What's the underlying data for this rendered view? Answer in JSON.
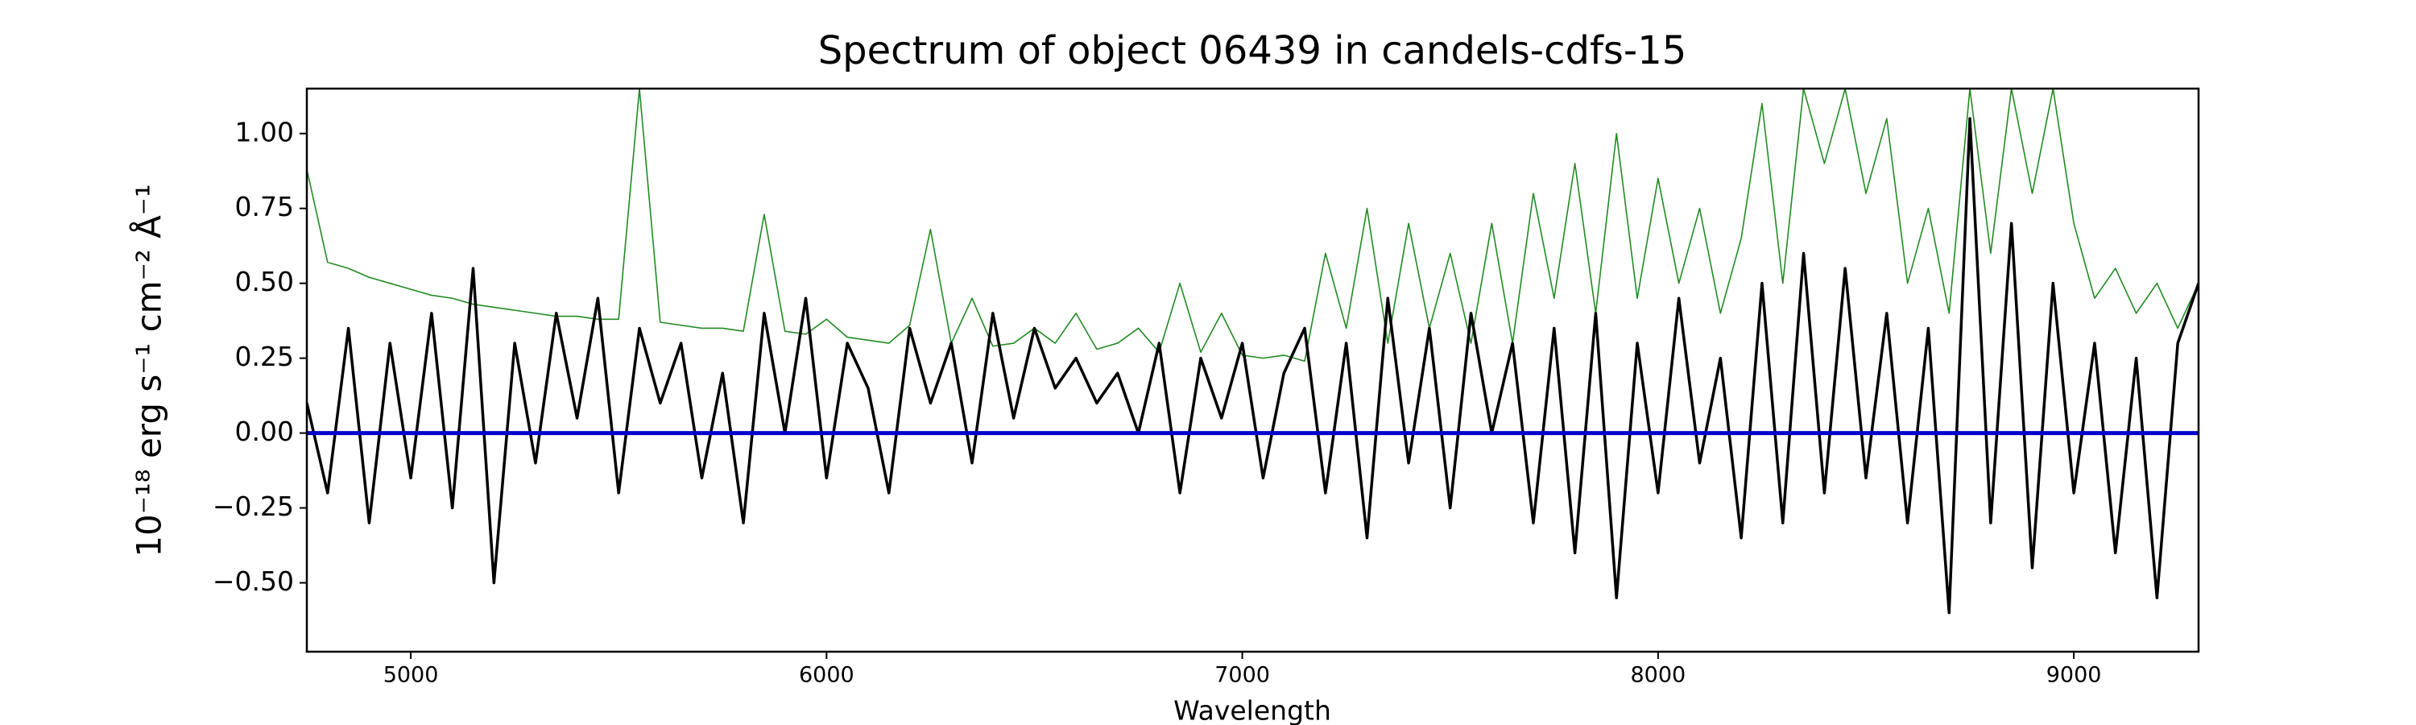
{
  "chart_data": {
    "type": "line",
    "title": "Spectrum of object 06439 in candels-cdfs-15",
    "x_label": "Wavelength",
    "y_label": "10⁻¹⁸ erg s⁻¹ cm⁻² Å⁻¹",
    "xlim": [
      4750,
      9300
    ],
    "ylim": [
      -0.73,
      1.15
    ],
    "xticks": [
      5000,
      6000,
      7000,
      8000,
      9000
    ],
    "yticks": [
      {
        "value": -0.5,
        "label": "−0.50"
      },
      {
        "value": -0.25,
        "label": "−0.25"
      },
      {
        "value": 0,
        "label": "0.00"
      },
      {
        "value": 0.25,
        "label": "0.25"
      },
      {
        "value": 0.5,
        "label": "0.50"
      },
      {
        "value": 0.75,
        "label": "0.75"
      },
      {
        "value": 1,
        "label": "1.00"
      }
    ],
    "x": [
      4750,
      4800,
      4850,
      4900,
      4950,
      5000,
      5050,
      5100,
      5150,
      5200,
      5250,
      5300,
      5350,
      5400,
      5450,
      5500,
      5550,
      5600,
      5650,
      5700,
      5750,
      5800,
      5850,
      5900,
      5950,
      6000,
      6050,
      6100,
      6150,
      6200,
      6250,
      6300,
      6350,
      6400,
      6450,
      6500,
      6550,
      6600,
      6650,
      6700,
      6750,
      6800,
      6850,
      6900,
      6950,
      7000,
      7050,
      7100,
      7150,
      7200,
      7250,
      7300,
      7350,
      7400,
      7450,
      7500,
      7550,
      7600,
      7650,
      7700,
      7750,
      7800,
      7850,
      7900,
      7950,
      8000,
      8050,
      8100,
      8150,
      8200,
      8250,
      8300,
      8350,
      8400,
      8450,
      8500,
      8550,
      8600,
      8650,
      8700,
      8750,
      8800,
      8850,
      8900,
      8950,
      9000,
      9050,
      9100,
      9150,
      9200,
      9250,
      9300
    ],
    "series": [
      {
        "color": "#228b22",
        "width": 1.6,
        "values": [
          0.88,
          0.57,
          0.55,
          0.52,
          0.5,
          0.48,
          0.46,
          0.45,
          0.43,
          0.42,
          0.41,
          0.4,
          0.39,
          0.39,
          0.38,
          0.38,
          1.15,
          0.37,
          0.36,
          0.35,
          0.35,
          0.34,
          0.73,
          0.34,
          0.33,
          0.38,
          0.32,
          0.31,
          0.3,
          0.36,
          0.68,
          0.3,
          0.45,
          0.29,
          0.3,
          0.35,
          0.3,
          0.4,
          0.28,
          0.3,
          0.35,
          0.27,
          0.5,
          0.27,
          0.4,
          0.26,
          0.25,
          0.26,
          0.24,
          0.6,
          0.35,
          0.75,
          0.3,
          0.7,
          0.35,
          0.6,
          0.3,
          0.7,
          0.3,
          0.8,
          0.45,
          0.9,
          0.4,
          1.0,
          0.45,
          0.85,
          0.5,
          0.75,
          0.4,
          0.65,
          1.1,
          0.5,
          1.15,
          0.9,
          1.15,
          0.8,
          1.05,
          0.5,
          0.75,
          0.4,
          1.15,
          0.6,
          1.15,
          0.8,
          1.15,
          0.7,
          0.45,
          0.55,
          0.4,
          0.5,
          0.35,
          0.5
        ]
      },
      {
        "color": "#000000",
        "width": 3.5,
        "values": [
          0.1,
          -0.2,
          0.35,
          -0.3,
          0.3,
          -0.15,
          0.4,
          -0.25,
          0.55,
          -0.5,
          0.3,
          -0.1,
          0.4,
          0.05,
          0.45,
          -0.2,
          0.35,
          0.1,
          0.3,
          -0.15,
          0.2,
          -0.3,
          0.4,
          0.0,
          0.45,
          -0.15,
          0.3,
          0.15,
          -0.2,
          0.35,
          0.1,
          0.3,
          -0.1,
          0.4,
          0.05,
          0.35,
          0.15,
          0.25,
          0.1,
          0.2,
          0.0,
          0.3,
          -0.2,
          0.25,
          0.05,
          0.3,
          -0.15,
          0.2,
          0.35,
          -0.2,
          0.3,
          -0.35,
          0.45,
          -0.1,
          0.35,
          -0.25,
          0.4,
          0.0,
          0.3,
          -0.3,
          0.35,
          -0.4,
          0.4,
          -0.55,
          0.3,
          -0.2,
          0.45,
          -0.1,
          0.25,
          -0.35,
          0.5,
          -0.3,
          0.6,
          -0.2,
          0.55,
          -0.15,
          0.4,
          -0.3,
          0.35,
          -0.6,
          1.05,
          -0.3,
          0.7,
          -0.45,
          0.5,
          -0.2,
          0.3,
          -0.4,
          0.25,
          -0.55,
          0.3,
          0.5
        ]
      },
      {
        "color": "#0000cd",
        "width": 5,
        "values": [
          0,
          0,
          0,
          0,
          0,
          0,
          0,
          0,
          0,
          0,
          0,
          0,
          0,
          0,
          0,
          0,
          0,
          0,
          0,
          0,
          0,
          0,
          0,
          0,
          0,
          0,
          0,
          0,
          0,
          0,
          0,
          0,
          0,
          0,
          0,
          0,
          0,
          0,
          0,
          0,
          0,
          0,
          0,
          0,
          0,
          0,
          0,
          0,
          0,
          0,
          0,
          0,
          0,
          0,
          0,
          0,
          0,
          0,
          0,
          0,
          0,
          0,
          0,
          0,
          0,
          0,
          0,
          0,
          0,
          0,
          0,
          0,
          0,
          0,
          0,
          0,
          0,
          0,
          0,
          0,
          0,
          0,
          0,
          0,
          0,
          0,
          0,
          0,
          0,
          0,
          0,
          0
        ]
      }
    ]
  }
}
